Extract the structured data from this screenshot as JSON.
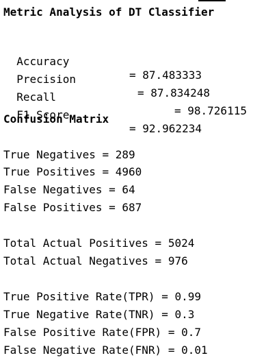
{
  "title": "Metric Analysis of DT Classifier",
  "metrics": [
    {
      "label": "Accuracy",
      "value": "= 87.483333"
    },
    {
      "label": "Precision",
      "value": "= 87.834248"
    },
    {
      "label": "Recall",
      "value": "= 98.726115"
    },
    {
      "label": "F1 Score",
      "value": "= 92.962234"
    }
  ],
  "confusion_heading": "Confusion Matrix",
  "confusion": [
    "True Negatives = 289",
    "True Positives = 4960",
    "False Negatives = 64",
    "False Positives = 687"
  ],
  "totals": [
    "Total Actual Positives = 5024",
    "Total Actual Negatives = 976"
  ],
  "rates": [
    "True Positive Rate(TPR) = 0.99",
    "True Negative Rate(TNR) = 0.3",
    "False Positive Rate(FPR) = 0.7",
    "False Negative Rate(FNR) = 0.01"
  ]
}
